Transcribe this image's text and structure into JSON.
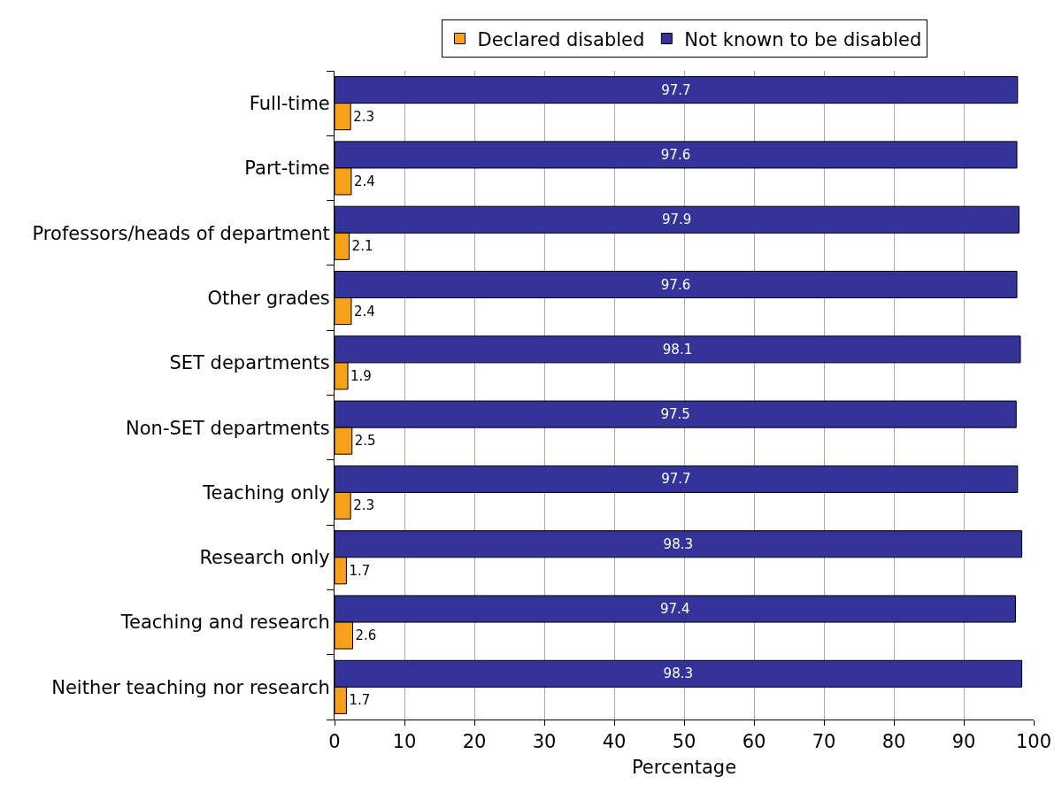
{
  "chart_data": {
    "type": "bar",
    "orientation": "horizontal",
    "xlabel": "Percentage",
    "categories": [
      "Full-time",
      "Part-time",
      "Professors/heads of department",
      "Other grades",
      "SET departments",
      "Non-SET departments",
      "Teaching only",
      "Research only",
      "Teaching and research",
      "Neither teaching nor research"
    ],
    "series": [
      {
        "name": "Declared disabled",
        "color": "#f7a11a",
        "values": [
          2.3,
          2.4,
          2.1,
          2.4,
          1.9,
          2.5,
          2.3,
          1.7,
          2.6,
          1.7
        ]
      },
      {
        "name": "Not known to be disabled",
        "color": "#333399",
        "values": [
          97.7,
          97.6,
          97.9,
          97.6,
          98.1,
          97.5,
          97.7,
          98.3,
          97.4,
          98.3
        ]
      }
    ],
    "xlim": [
      0,
      100
    ],
    "xticks": [
      0,
      10,
      20,
      30,
      40,
      50,
      60,
      70,
      80,
      90,
      100
    ],
    "grid": "x",
    "legend": "top",
    "data_labels": true
  }
}
